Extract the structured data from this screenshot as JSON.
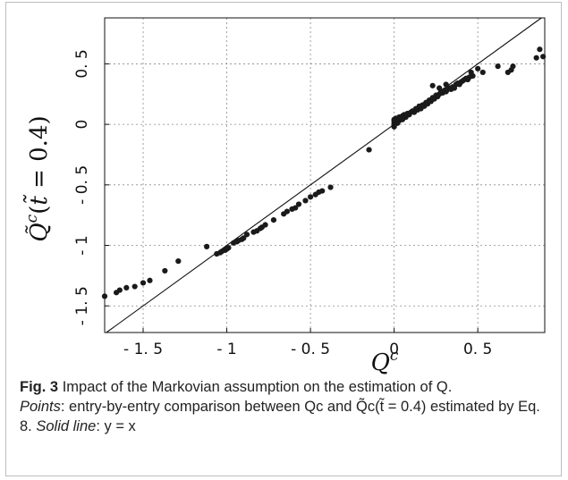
{
  "figure": {
    "label": "Fig. 3",
    "caption_title": "Impact of the Markovian assumption on the estimation of Q.",
    "caption_points_label": "Points",
    "caption_points_text": ": entry-by-entry comparison between Qc and Q̃c(t̃ = 0.4) estimated by Eq. 8.",
    "caption_line_label": "Solid line",
    "caption_line_text": ": y = x"
  },
  "chart_data": {
    "type": "scatter",
    "xlabel": "Q^c",
    "ylabel": "Q̃^c(t̃ = 0.4)",
    "xlim": [
      -1.73,
      0.9
    ],
    "ylim": [
      -1.72,
      0.88
    ],
    "xticks": [
      -1.5,
      -1,
      -0.5,
      0,
      0.5
    ],
    "xtick_labels": [
      "- 1. 5",
      "- 1",
      "- 0. 5",
      "0",
      "0. 5"
    ],
    "yticks": [
      -1.5,
      -1,
      -0.5,
      0,
      0.5
    ],
    "ytick_labels": [
      "- 1. 5",
      "- 1",
      "- 0. 5",
      "0",
      "0. 5"
    ],
    "grid": true,
    "reference_line": "y = x",
    "series": [
      {
        "marker": "circle",
        "color": "#1a1a1a",
        "points": [
          [
            -1.73,
            -1.42
          ],
          [
            -1.66,
            -1.39
          ],
          [
            -1.64,
            -1.37
          ],
          [
            -1.6,
            -1.35
          ],
          [
            -1.55,
            -1.34
          ],
          [
            -1.5,
            -1.31
          ],
          [
            -1.46,
            -1.29
          ],
          [
            -1.37,
            -1.21
          ],
          [
            -1.29,
            -1.13
          ],
          [
            -1.12,
            -1.01
          ],
          [
            -1.06,
            -1.07
          ],
          [
            -1.04,
            -1.06
          ],
          [
            -1.03,
            -1.05
          ],
          [
            -1.01,
            -1.04
          ],
          [
            -1.0,
            -1.03
          ],
          [
            -0.99,
            -1.02
          ],
          [
            -0.96,
            -0.98
          ],
          [
            -0.94,
            -0.97
          ],
          [
            -0.93,
            -0.96
          ],
          [
            -0.91,
            -0.95
          ],
          [
            -0.9,
            -0.94
          ],
          [
            -0.88,
            -0.91
          ],
          [
            -0.84,
            -0.89
          ],
          [
            -0.82,
            -0.88
          ],
          [
            -0.8,
            -0.86
          ],
          [
            -0.79,
            -0.85
          ],
          [
            -0.77,
            -0.83
          ],
          [
            -0.72,
            -0.79
          ],
          [
            -0.66,
            -0.74
          ],
          [
            -0.64,
            -0.72
          ],
          [
            -0.61,
            -0.7
          ],
          [
            -0.59,
            -0.69
          ],
          [
            -0.57,
            -0.66
          ],
          [
            -0.53,
            -0.63
          ],
          [
            -0.5,
            -0.6
          ],
          [
            -0.47,
            -0.58
          ],
          [
            -0.45,
            -0.56
          ],
          [
            -0.43,
            -0.55
          ],
          [
            -0.38,
            -0.52
          ],
          [
            -0.15,
            -0.21
          ],
          [
            0.0,
            0.03
          ],
          [
            0.0,
            0.01
          ],
          [
            0.0,
            -0.01
          ],
          [
            0.0,
            0.04
          ],
          [
            0.0,
            -0.02
          ],
          [
            0.01,
            0.02
          ],
          [
            0.01,
            0.05
          ],
          [
            0.02,
            0.01
          ],
          [
            0.02,
            0.04
          ],
          [
            0.03,
            0.03
          ],
          [
            0.03,
            0.06
          ],
          [
            0.04,
            0.05
          ],
          [
            0.05,
            0.07
          ],
          [
            0.05,
            0.04
          ],
          [
            0.06,
            0.08
          ],
          [
            0.07,
            0.06
          ],
          [
            0.08,
            0.09
          ],
          [
            0.09,
            0.08
          ],
          [
            0.1,
            0.1
          ],
          [
            0.11,
            0.11
          ],
          [
            0.12,
            0.1
          ],
          [
            0.13,
            0.13
          ],
          [
            0.14,
            0.12
          ],
          [
            0.15,
            0.15
          ],
          [
            0.16,
            0.13
          ],
          [
            0.17,
            0.16
          ],
          [
            0.18,
            0.15
          ],
          [
            0.19,
            0.18
          ],
          [
            0.2,
            0.17
          ],
          [
            0.21,
            0.2
          ],
          [
            0.22,
            0.19
          ],
          [
            0.23,
            0.22
          ],
          [
            0.24,
            0.21
          ],
          [
            0.25,
            0.24
          ],
          [
            0.26,
            0.23
          ],
          [
            0.27,
            0.25
          ],
          [
            0.28,
            0.27
          ],
          [
            0.29,
            0.26
          ],
          [
            0.3,
            0.28
          ],
          [
            0.31,
            0.27
          ],
          [
            0.32,
            0.29
          ],
          [
            0.33,
            0.3
          ],
          [
            0.34,
            0.29
          ],
          [
            0.35,
            0.31
          ],
          [
            0.36,
            0.3
          ],
          [
            0.37,
            0.33
          ],
          [
            0.38,
            0.34
          ],
          [
            0.39,
            0.33
          ],
          [
            0.4,
            0.35
          ],
          [
            0.41,
            0.36
          ],
          [
            0.42,
            0.37
          ],
          [
            0.43,
            0.38
          ],
          [
            0.44,
            0.37
          ],
          [
            0.45,
            0.39
          ],
          [
            0.47,
            0.4
          ],
          [
            0.23,
            0.32
          ],
          [
            0.27,
            0.3
          ],
          [
            0.31,
            0.33
          ],
          [
            0.46,
            0.43
          ],
          [
            0.5,
            0.46
          ],
          [
            0.53,
            0.43
          ],
          [
            0.62,
            0.48
          ],
          [
            0.68,
            0.43
          ],
          [
            0.7,
            0.45
          ],
          [
            0.71,
            0.48
          ],
          [
            0.85,
            0.55
          ],
          [
            0.87,
            0.62
          ],
          [
            0.89,
            0.56
          ]
        ]
      }
    ]
  }
}
